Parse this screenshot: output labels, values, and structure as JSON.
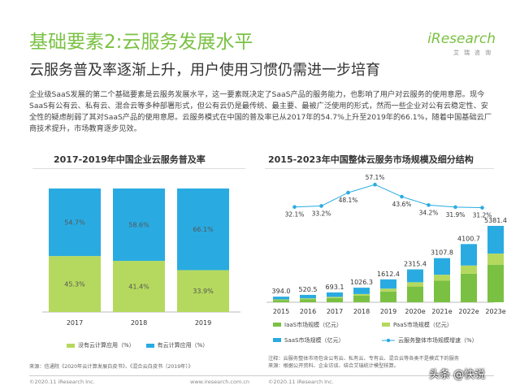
{
  "header": {
    "title": "基础要素2:云服务发展水平",
    "subtitle": "云服务普及率逐渐上升，用户使用习惯仍需进一步培育",
    "description": "企业级SaaS发展的第二个基础要素是云服务发展水平，这一要素既决定了SaaS产品的服务能力，也影响了用户对云服务的使用意愿。现今SaaS有公有云、私有云、混合云等多种部署形式，但公有云仍是最传统、最主要、最被广泛使用的形式，然而一些企业对公有云稳定性、安全性的疑虑削弱了其对SaaS产品的使用意愿。云服务模式在中国的普及率已从2017年的54.7%上升至2019年的66.1%，随着中国基础云厂商技术提升，市场教育逐步见效。"
  },
  "logo": {
    "name": "iResearch",
    "sub": "艾瑞咨询"
  },
  "colors": {
    "green": "#7ac143",
    "light_green": "#b5d95e",
    "blue": "#29abe2",
    "line": "#29abe2"
  },
  "chart_data": [
    {
      "type": "bar",
      "stacked": true,
      "title": "2017-2019年中国企业云服务普及率",
      "categories": [
        "2017",
        "2018",
        "2019"
      ],
      "series": [
        {
          "name": "没有云计算应用（%）",
          "values": [
            45.3,
            41.4,
            33.9
          ],
          "labels": [
            "45.3%",
            "41.4%",
            "33.9%"
          ],
          "color": "#b5d95e"
        },
        {
          "name": "有云计算应用（%）",
          "values": [
            54.7,
            58.6,
            66.1
          ],
          "labels": [
            "54.7%",
            "58.6%",
            "66.1%"
          ],
          "color": "#29abe2"
        }
      ],
      "ylim": [
        0,
        100
      ],
      "legend": "bottom"
    },
    {
      "type": "bar",
      "stacked": true,
      "title": "2015-2023年中国整体云服务市场规模及细分结构",
      "categories": [
        "2015",
        "2016",
        "2017",
        "2018",
        "2019",
        "2020e",
        "2021e",
        "2022e",
        "2023e"
      ],
      "totals": [
        394.0,
        520.5,
        693.1,
        1026.3,
        1612.4,
        2315.4,
        3107.8,
        4100.7,
        5381.4
      ],
      "total_labels": [
        "394.0",
        "520.5",
        "693.1",
        "1026.3",
        "1612.4",
        "2315.4",
        "3107.8",
        "4100.7",
        "5381.4"
      ],
      "series": [
        {
          "name": "IaaS市场规模（亿元）",
          "values": [
            160,
            220,
            300,
            460,
            760,
            1110,
            1520,
            2010,
            2650
          ],
          "color": "#7ac143"
        },
        {
          "name": "PaaS市场规模（亿元）",
          "values": [
            40,
            55,
            78,
            120,
            200,
            300,
            420,
            580,
            780
          ],
          "color": "#b5d95e"
        },
        {
          "name": "SaaS市场规模（亿元）",
          "values": [
            194,
            245.5,
            315.1,
            446.3,
            652.4,
            905.4,
            1167.8,
            1510.7,
            1951.4
          ],
          "color": "#29abe2"
        }
      ],
      "line": {
        "name": "云服务整体市场规模增速（%）",
        "values": [
          32.1,
          33.2,
          48.1,
          57.1,
          43.6,
          34.2,
          31.9,
          31.2
        ],
        "labels": [
          "32.1%",
          "33.2%",
          "48.1%",
          "57.1%",
          "43.6%",
          "34.2%",
          "31.9%",
          "31.2%"
        ],
        "x_index": [
          0,
          1,
          2,
          3,
          4,
          5,
          6,
          7
        ]
      },
      "legend": "bottom"
    }
  ],
  "sources": {
    "left": "来源：信通院《2020年云计算发展白皮书》、《混合云白皮书（2019年）》",
    "right_note": "注释：云服务整体市场包含公有云、私有云、专有云、混合云等各类不是模式下的服务",
    "right_source": "来源：根据公开资料、企业访谈、结合艾瑞统计模型核算。"
  },
  "footer": {
    "left_copyright": "©2020.11 iResearch Inc.",
    "left_site": "www.iresearch.com.cn",
    "right_copyright": "©2020.11 iResearch Inc.",
    "watermark": "头条 @快说"
  }
}
